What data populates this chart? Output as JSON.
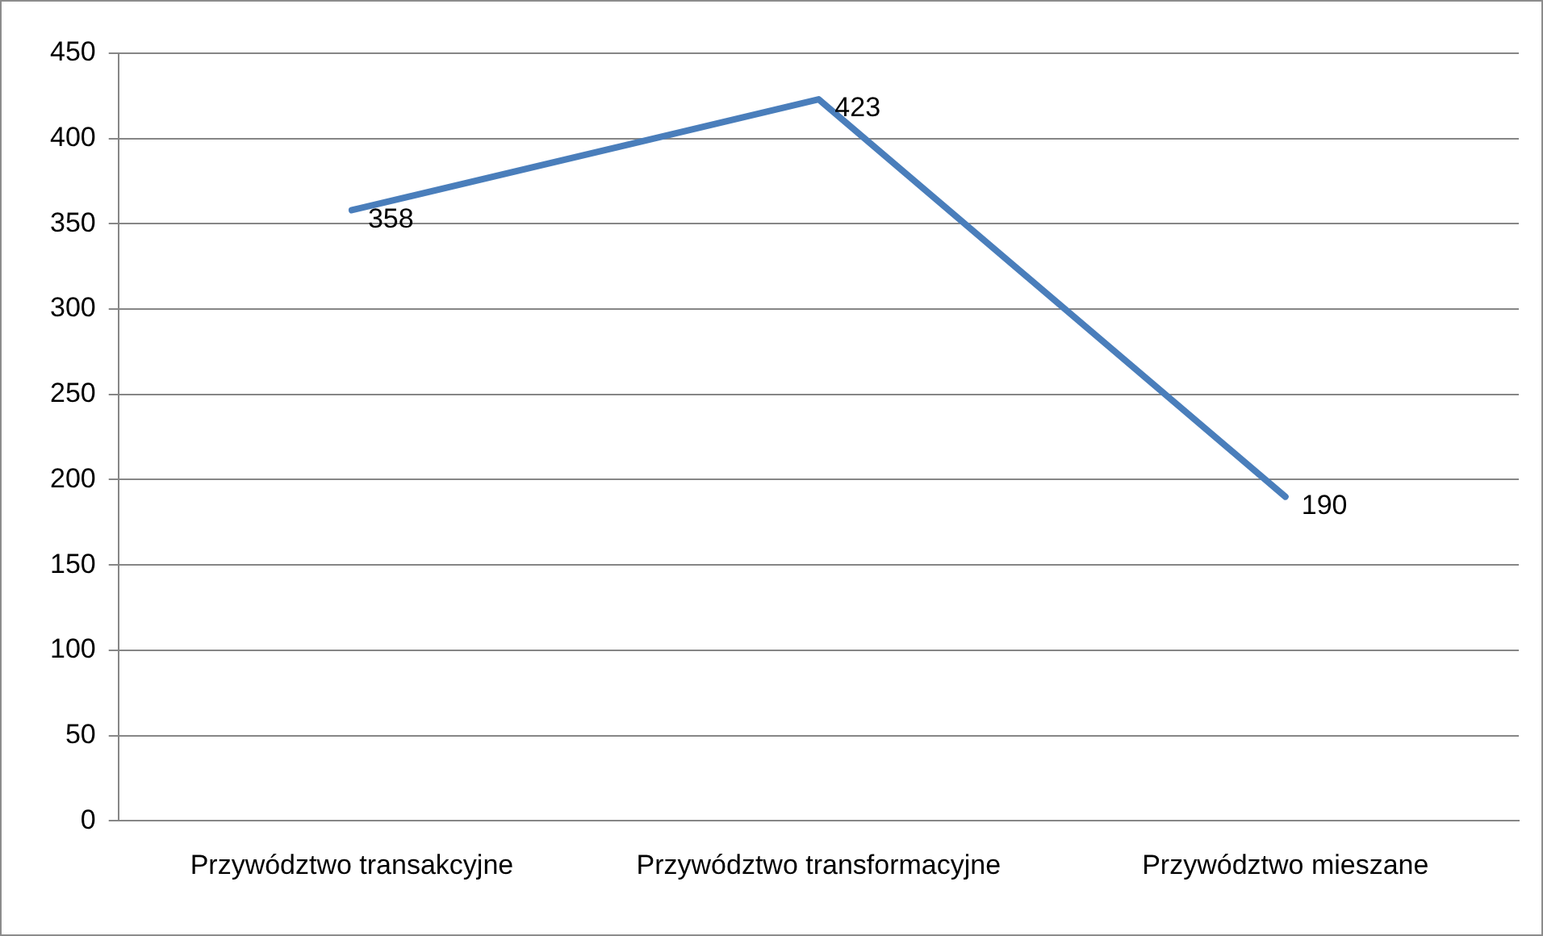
{
  "chart_data": {
    "type": "line",
    "categories": [
      "Przywództwo transakcyjne",
      "Przywództwo transformacyjne",
      "Przywództwo mieszane"
    ],
    "series": [
      {
        "color": "#4a7ebb",
        "values": [
          358,
          423,
          190
        ]
      }
    ],
    "ylim": [
      0,
      450
    ],
    "yticks": [
      0,
      50,
      100,
      150,
      200,
      250,
      300,
      350,
      400,
      450
    ],
    "grid": "y",
    "legend": false,
    "marker": "none",
    "line_style": "solid",
    "data_labels": true
  }
}
